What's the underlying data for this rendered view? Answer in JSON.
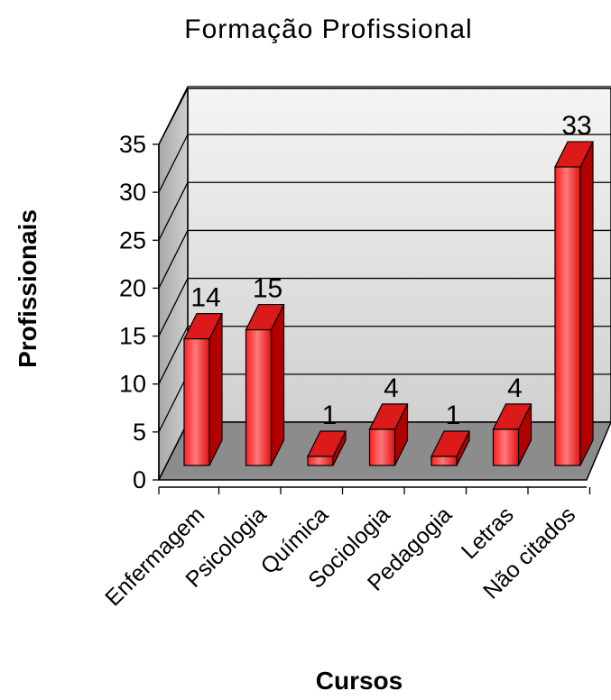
{
  "chart_data": {
    "type": "bar",
    "title": "Formação Profissional",
    "xlabel": "Cursos",
    "ylabel": "Profissionais",
    "categories": [
      "Enfermagem",
      "Psicologia",
      "Química",
      "Sociologia",
      "Pedagogia",
      "Letras",
      "Não citados"
    ],
    "values": [
      14,
      15,
      1,
      4,
      1,
      4,
      33
    ],
    "data_labels": [
      "14",
      "15",
      "1",
      "4",
      "1",
      "4",
      "33"
    ],
    "ylim": [
      0,
      35
    ],
    "yticks": [
      "0",
      "5",
      "10",
      "15",
      "20",
      "25",
      "30",
      "35"
    ],
    "grid": true,
    "legend": "none",
    "three_d": true,
    "colors": {
      "bar_front": "#ff3b3b",
      "bar_side": "#b00000",
      "bar_top": "#dd1a1a",
      "floor": "#8c8c8c",
      "wall": "#e6e6e6",
      "side_wall": "#bdbdbd"
    }
  }
}
